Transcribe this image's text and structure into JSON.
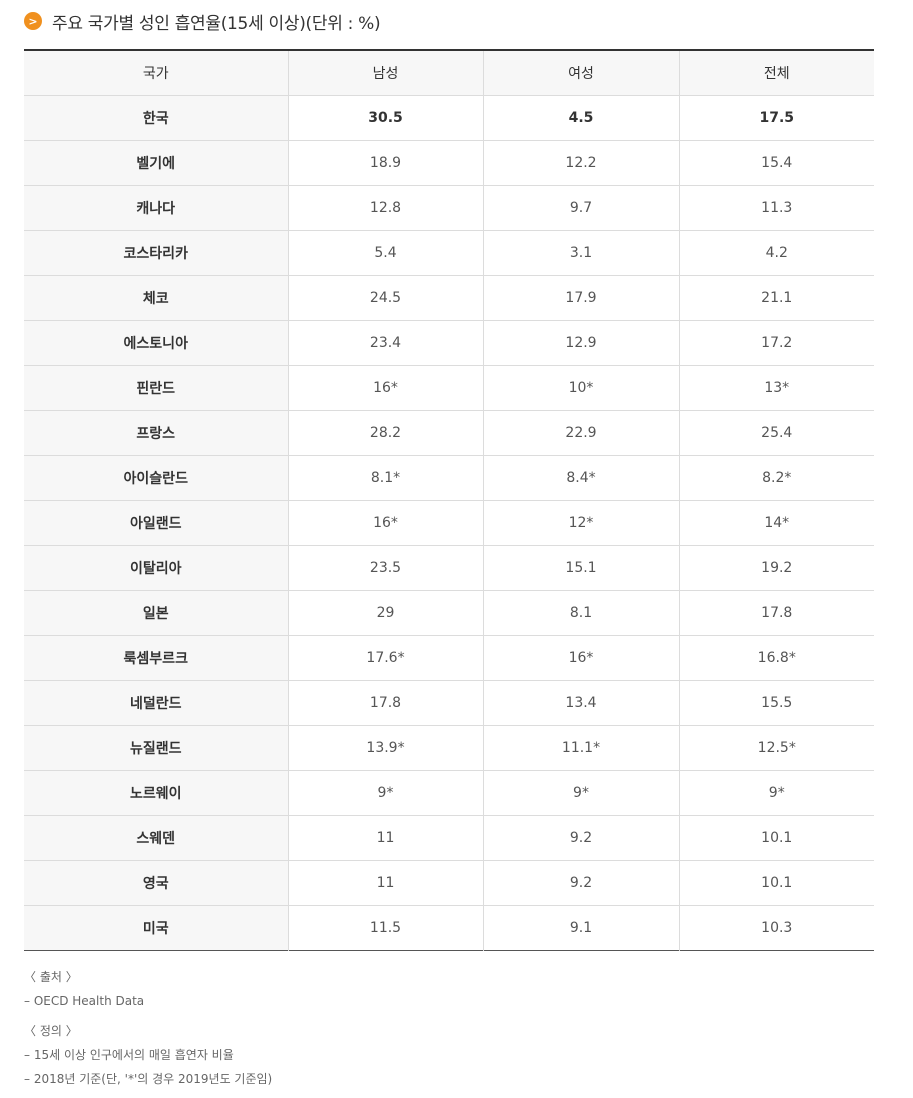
{
  "title": {
    "icon": "chevron-right-icon",
    "icon_glyph": ">",
    "text": "주요 국가별 성인 흡연율(15세 이상)(단위 : %)",
    "accent_color": "#f0901e"
  },
  "table": {
    "headers": [
      "국가",
      "남성",
      "여성",
      "전체"
    ],
    "rows": [
      [
        "한국",
        "30.5",
        "4.5",
        "17.5"
      ],
      [
        "벨기에",
        "18.9",
        "12.2",
        "15.4"
      ],
      [
        "캐나다",
        "12.8",
        "9.7",
        "11.3"
      ],
      [
        "코스타리카",
        "5.4",
        "3.1",
        "4.2"
      ],
      [
        "체코",
        "24.5",
        "17.9",
        "21.1"
      ],
      [
        "에스토니아",
        "23.4",
        "12.9",
        "17.2"
      ],
      [
        "핀란드",
        "16*",
        "10*",
        "13*"
      ],
      [
        "프랑스",
        "28.2",
        "22.9",
        "25.4"
      ],
      [
        "아이슬란드",
        "8.1*",
        "8.4*",
        "8.2*"
      ],
      [
        "아일랜드",
        "16*",
        "12*",
        "14*"
      ],
      [
        "이탈리아",
        "23.5",
        "15.1",
        "19.2"
      ],
      [
        "일본",
        "29",
        "8.1",
        "17.8"
      ],
      [
        "룩셈부르크",
        "17.6*",
        "16*",
        "16.8*"
      ],
      [
        "네덜란드",
        "17.8",
        "13.4",
        "15.5"
      ],
      [
        "뉴질랜드",
        "13.9*",
        "11.1*",
        "12.5*"
      ],
      [
        "노르웨이",
        "9*",
        "9*",
        "9*"
      ],
      [
        "스웨덴",
        "11",
        "9.2",
        "10.1"
      ],
      [
        "영국",
        "11",
        "9.2",
        "10.1"
      ],
      [
        "미국",
        "11.5",
        "9.1",
        "10.3"
      ]
    ]
  },
  "notes": {
    "source_label": "〈 출처 〉",
    "source_items": [
      "– OECD Health Data"
    ],
    "definition_label": "〈 정의 〉",
    "definition_items": [
      "– 15세 이상 인구에서의 매일 흡연자 비율",
      "– 2018년 기준(단, '*'의 경우 2019년도 기준임)"
    ]
  }
}
